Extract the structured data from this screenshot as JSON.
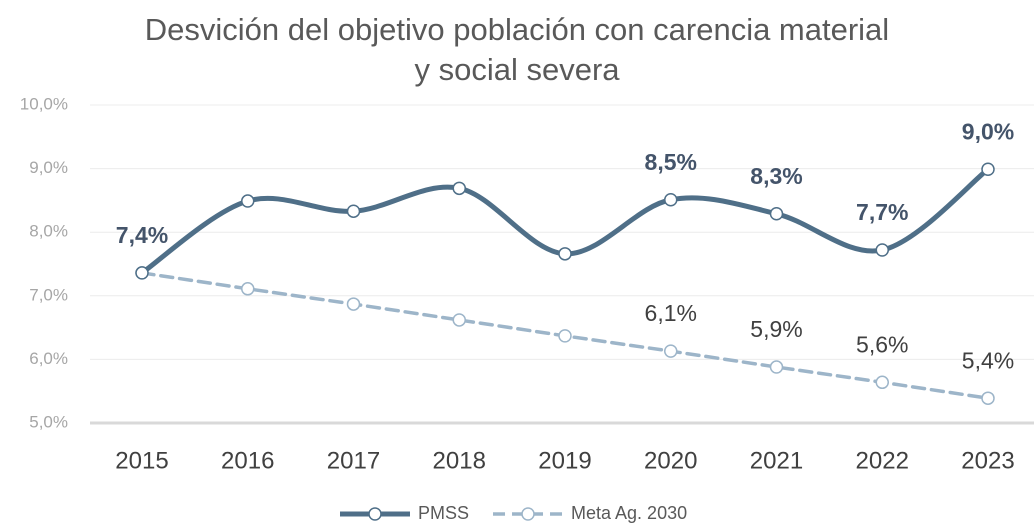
{
  "chart_data": {
    "type": "line",
    "title": "Desvición del objetivo población con carencia material y social severa",
    "categories": [
      "2015",
      "2016",
      "2017",
      "2018",
      "2019",
      "2020",
      "2021",
      "2022",
      "2023"
    ],
    "series": [
      {
        "name": "PMSS",
        "color": "#4f6f88",
        "smooth": true,
        "dashed": false,
        "values": [
          7.36,
          8.49,
          8.33,
          8.69,
          7.66,
          8.51,
          8.29,
          7.72,
          8.99
        ],
        "value_labels": [
          "7,4%",
          null,
          null,
          null,
          null,
          "8,5%",
          "8,3%",
          "7,7%",
          "9,0%"
        ]
      },
      {
        "name": "Meta Ag. 2030",
        "color": "#9db5c9",
        "smooth": false,
        "dashed": true,
        "values": [
          7.36,
          7.11,
          6.87,
          6.62,
          6.37,
          6.13,
          5.88,
          5.64,
          5.39
        ],
        "value_labels": [
          null,
          null,
          null,
          null,
          null,
          "6,1%",
          "5,9%",
          "5,6%",
          "5,4%"
        ]
      }
    ],
    "ylim": [
      5,
      10
    ],
    "yticks": [
      {
        "value": 5,
        "label": "5,0%"
      },
      {
        "value": 6,
        "label": "6,0%"
      },
      {
        "value": 7,
        "label": "7,0%"
      },
      {
        "value": 8,
        "label": "8,0%"
      },
      {
        "value": 9,
        "label": "9,0%"
      },
      {
        "value": 10,
        "label": "10,0%"
      }
    ],
    "grid": true,
    "legend": "bottom"
  }
}
